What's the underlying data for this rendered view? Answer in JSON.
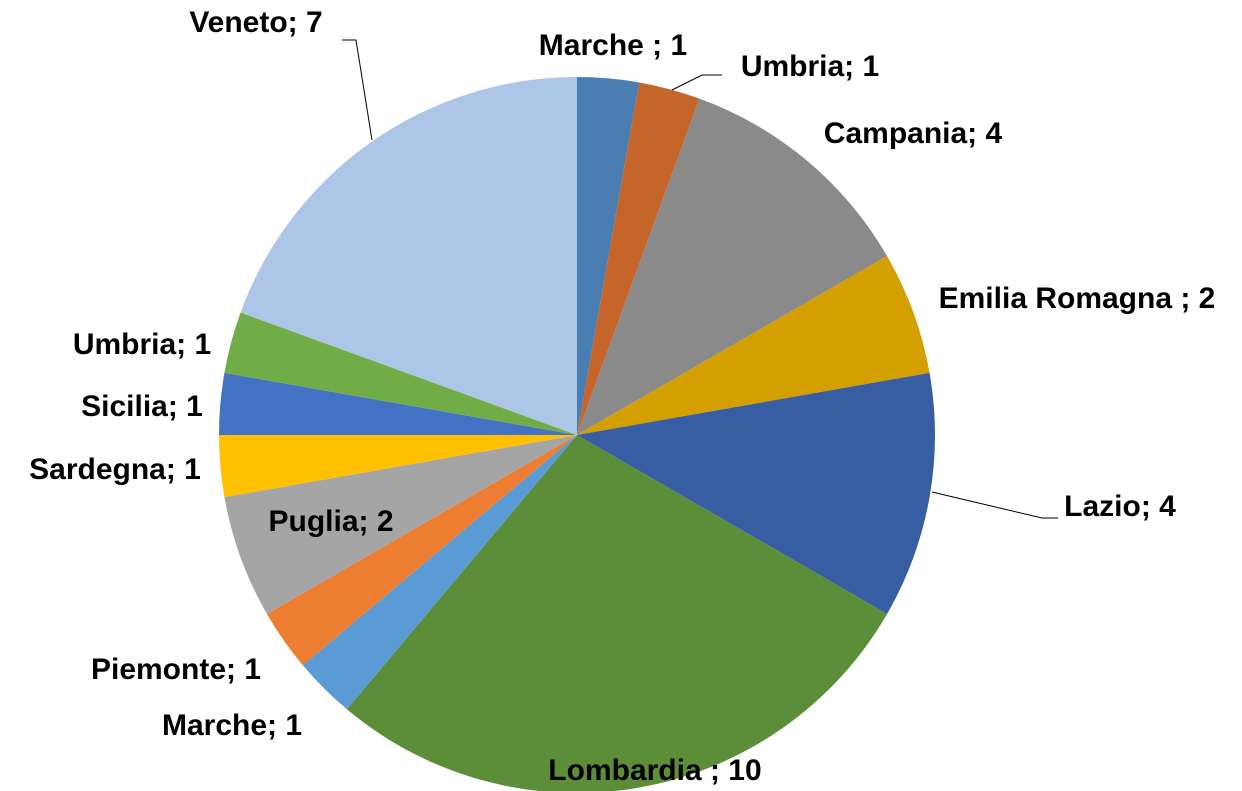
{
  "chart_data": {
    "type": "pie",
    "values": [
      1,
      1,
      4,
      2,
      4,
      10,
      1,
      1,
      2,
      1,
      1,
      1,
      7
    ],
    "value_labels": [
      "Marche ; 1",
      "Umbria; 1",
      "Campania; 4",
      "Emilia Romagna ; 2",
      "Lazio; 4",
      "Lombardia ; 10",
      "Marche; 1",
      "Piemonte; 1",
      "Puglia; 2",
      "Sardegna; 1",
      "Sicilia; 1",
      "Umbria; 1",
      "Veneto; 7"
    ],
    "colors": [
      "#4a7eb3",
      "#c5652a",
      "#8a8a8a",
      "#d4a000",
      "#375ea2",
      "#5c8e3a",
      "#5b9bd5",
      "#ed7d31",
      "#a5a5a5",
      "#ffc000",
      "#4472c4",
      "#70ad47",
      "#adc5e6"
    ]
  }
}
